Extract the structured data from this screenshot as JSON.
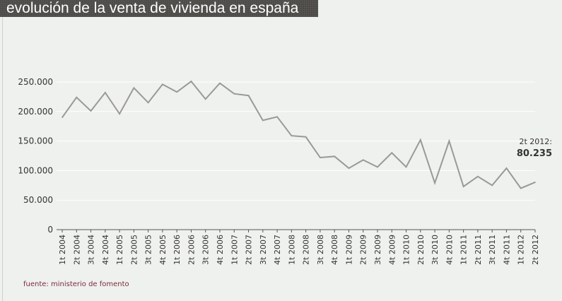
{
  "title": "evolución de la venta de vivienda en españa",
  "source": "fuente: ministerio de fomento",
  "chart_data": {
    "type": "line",
    "title": "evolución de la venta de vivienda en españa",
    "xlabel": "",
    "ylabel": "",
    "ylim": [
      0,
      250000
    ],
    "yticks": [
      "0",
      "50.000",
      "100.000",
      "150.000",
      "200.000",
      "250.000"
    ],
    "ytick_values": [
      0,
      50000,
      100000,
      150000,
      200000,
      250000
    ],
    "grid": true,
    "categories": [
      "1t 2004",
      "2t 2004",
      "3t 2004",
      "4t 2004",
      "1t 2005",
      "2t 2005",
      "3t 2005",
      "4t 2005",
      "1t 2006",
      "2t 2006",
      "3t 2006",
      "4t 2006",
      "1t 2007",
      "2t 2007",
      "3t 2007",
      "4t 2007",
      "1t 2008",
      "2t 2008",
      "3t 2008",
      "4t 2008",
      "1t 2009",
      "2t 2009",
      "3t 2009",
      "4t 2009",
      "1t 2010",
      "2t 2010",
      "3t 2010",
      "4t 2010",
      "1t 2011",
      "2t 2011",
      "3t 2011",
      "4t 2011",
      "1t 2012",
      "2t 2012"
    ],
    "values": [
      190000,
      224000,
      201000,
      232000,
      196000,
      240000,
      215000,
      246000,
      233000,
      251000,
      221000,
      248000,
      230000,
      227000,
      185000,
      191000,
      159000,
      157000,
      122000,
      124000,
      104000,
      118000,
      106000,
      130000,
      106000,
      152000,
      79000,
      150000,
      73000,
      90000,
      75000,
      104000,
      70000,
      80235
    ],
    "line_color": "#999999",
    "annotation": {
      "label": "2t 2012:",
      "value": "80.235"
    }
  }
}
